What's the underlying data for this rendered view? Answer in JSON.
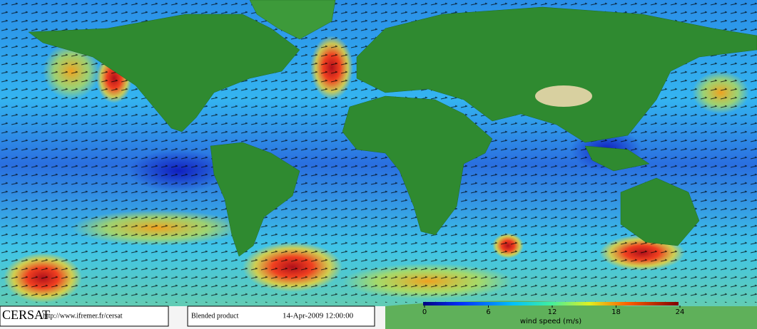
{
  "footer": {
    "brand": "CERSAT",
    "url": "http://www.ifremer.fr/cersat",
    "product": "Blended product",
    "date": "14-Apr-2009 12:00:00"
  },
  "colorbar": {
    "ticks": [
      0,
      6,
      12,
      18,
      24
    ],
    "label": "wind speed (m/s)"
  }
}
